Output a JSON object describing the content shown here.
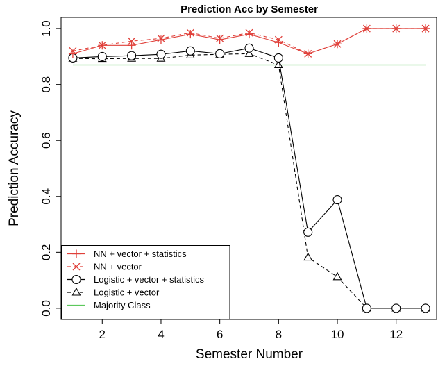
{
  "chart_data": {
    "type": "line",
    "title": "Prediction Acc by Semester",
    "xlabel": "Semester Number",
    "ylabel": "Prediction Accuracy",
    "xlim": [
      0.6,
      13.4
    ],
    "ylim": [
      -0.04,
      1.04
    ],
    "xticks": [
      2,
      4,
      6,
      8,
      10,
      12
    ],
    "yticks": [
      0.0,
      0.2,
      0.4,
      0.6,
      0.8,
      1.0
    ],
    "ytick_labels": [
      "0.0",
      "0.2",
      "0.4",
      "0.6",
      "0.8",
      "1.0"
    ],
    "grid": false,
    "legend_position": "bottom-left",
    "x": [
      1,
      2,
      3,
      4,
      5,
      6,
      7,
      8,
      9,
      10,
      11,
      12,
      13
    ],
    "series": [
      {
        "name": "NN + vector + statistics",
        "color": "#e0403a",
        "marker": "plus",
        "line": "solid",
        "values": [
          0.91,
          0.94,
          0.94,
          0.96,
          0.98,
          0.96,
          0.98,
          0.95,
          0.91,
          0.945,
          1.0,
          1.0,
          1.0
        ]
      },
      {
        "name": "NN + vector",
        "color": "#e0403a",
        "marker": "cross",
        "line": "dashed",
        "values": [
          0.92,
          0.94,
          0.955,
          0.965,
          0.985,
          0.965,
          0.985,
          0.96,
          0.91,
          0.945,
          1.0,
          1.0,
          1.0
        ]
      },
      {
        "name": "Logistic + vector + statistics",
        "color": "#000000",
        "marker": "circle",
        "line": "solid",
        "values": [
          0.895,
          0.9,
          0.903,
          0.908,
          0.92,
          0.91,
          0.93,
          0.895,
          0.272,
          0.388,
          0.0,
          0.0,
          0.0
        ]
      },
      {
        "name": "Logistic + vector",
        "color": "#000000",
        "marker": "triangle",
        "line": "dashed",
        "values": [
          0.893,
          0.892,
          0.893,
          0.893,
          0.905,
          0.908,
          0.91,
          0.87,
          0.182,
          0.112,
          0.0,
          0.0,
          0.0
        ]
      },
      {
        "name": "Majority Class",
        "color": "#5cc85c",
        "marker": "none",
        "line": "solid",
        "values": [
          0.87,
          0.87,
          0.87,
          0.87,
          0.87,
          0.87,
          0.87,
          0.87,
          0.87,
          0.87,
          0.87,
          0.87,
          0.87
        ]
      }
    ]
  }
}
